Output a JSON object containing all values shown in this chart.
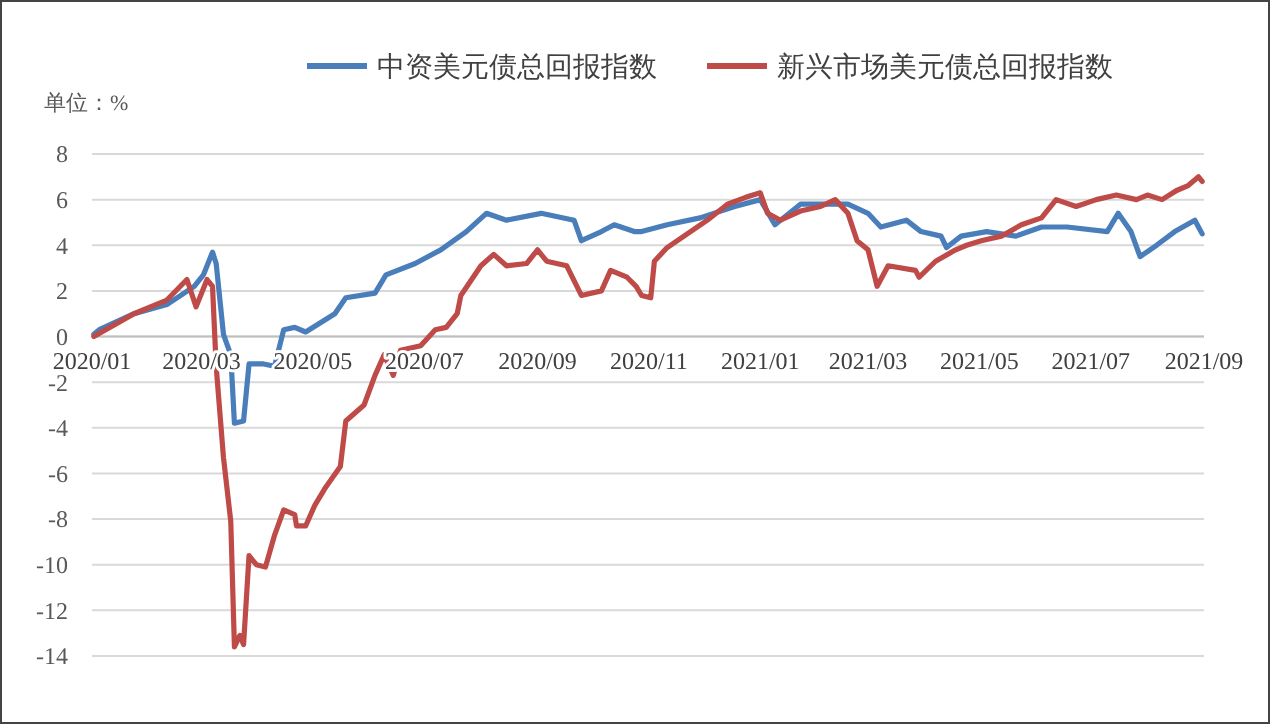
{
  "chart_data": {
    "type": "line",
    "legend": "top",
    "grid": "y",
    "ylabel": "单位：%",
    "xlim": [
      "2020-01-01",
      "2021-09-01"
    ],
    "xticks": [
      {
        "value": "2020-01-01",
        "label": "2020/01"
      },
      {
        "value": "2020-03-01",
        "label": "2020/03"
      },
      {
        "value": "2020-05-01",
        "label": "2020/05"
      },
      {
        "value": "2020-07-01",
        "label": "2020/07"
      },
      {
        "value": "2020-09-01",
        "label": "2020/09"
      },
      {
        "value": "2020-11-01",
        "label": "2020/11"
      },
      {
        "value": "2021-01-01",
        "label": "2021/01"
      },
      {
        "value": "2021-03-01",
        "label": "2021/03"
      },
      {
        "value": "2021-05-01",
        "label": "2021/05"
      },
      {
        "value": "2021-07-01",
        "label": "2021/07"
      },
      {
        "value": "2021-09-01",
        "label": "2021/09"
      }
    ],
    "ylim": [
      -14,
      8
    ],
    "yticks": [
      -14,
      -12,
      -10,
      -8,
      -6,
      -4,
      -2,
      0,
      2,
      4,
      6,
      8
    ],
    "series": [
      {
        "name": "中资美元债总回报指数",
        "color": "#4a7ebb",
        "x": [
          "2020-01-02",
          "2020-01-05",
          "2020-01-24",
          "2020-02-11",
          "2020-02-26",
          "2020-03-02",
          "2020-03-07",
          "2020-03-09",
          "2020-03-13",
          "2020-03-17",
          "2020-03-19",
          "2020-03-24",
          "2020-03-27",
          "2020-04-04",
          "2020-04-10",
          "2020-04-15",
          "2020-04-21",
          "2020-04-27",
          "2020-05-13",
          "2020-05-19",
          "2020-06-04",
          "2020-06-10",
          "2020-06-26",
          "2020-07-10",
          "2020-07-24",
          "2020-08-04",
          "2020-08-15",
          "2020-09-03",
          "2020-09-21",
          "2020-09-25",
          "2020-10-06",
          "2020-10-13",
          "2020-10-24",
          "2020-10-28",
          "2020-11-11",
          "2020-11-29",
          "2020-12-18",
          "2021-01-01",
          "2021-01-09",
          "2021-01-23",
          "2021-02-07",
          "2021-02-18",
          "2021-03-01",
          "2021-03-08",
          "2021-03-22",
          "2021-03-30",
          "2021-04-10",
          "2021-04-13",
          "2021-04-21",
          "2021-05-05",
          "2021-05-21",
          "2021-06-04",
          "2021-06-18",
          "2021-07-10",
          "2021-07-16",
          "2021-07-23",
          "2021-07-28",
          "2021-08-06",
          "2021-08-16",
          "2021-08-27",
          "2021-08-31"
        ],
        "values": [
          0.1,
          0.3,
          1.0,
          1.4,
          2.2,
          2.7,
          3.7,
          3.2,
          0.1,
          -0.8,
          -3.8,
          -3.7,
          -1.2,
          -1.2,
          -1.3,
          0.3,
          0.4,
          0.2,
          1.0,
          1.7,
          1.9,
          2.7,
          3.2,
          3.8,
          4.6,
          5.4,
          5.1,
          5.4,
          5.1,
          4.2,
          4.6,
          4.9,
          4.6,
          4.6,
          4.9,
          5.2,
          5.7,
          6.0,
          4.9,
          5.8,
          5.8,
          5.8,
          5.4,
          4.8,
          5.1,
          4.6,
          4.4,
          3.9,
          4.4,
          4.6,
          4.4,
          4.8,
          4.8,
          4.6,
          5.4,
          4.6,
          3.5,
          4.0,
          4.6,
          5.1,
          4.5
        ]
      },
      {
        "name": "新兴市场美元债总回报指数",
        "color": "#be4b48",
        "x": [
          "2020-01-02",
          "2020-01-24",
          "2020-02-11",
          "2020-02-22",
          "2020-02-27",
          "2020-03-04",
          "2020-03-07",
          "2020-03-09",
          "2020-03-13",
          "2020-03-17",
          "2020-03-19",
          "2020-03-22",
          "2020-03-24",
          "2020-03-27",
          "2020-03-31",
          "2020-04-05",
          "2020-04-10",
          "2020-04-15",
          "2020-04-21",
          "2020-04-22",
          "2020-04-27",
          "2020-05-02",
          "2020-05-08",
          "2020-05-16",
          "2020-05-19",
          "2020-05-29",
          "2020-06-04",
          "2020-06-09",
          "2020-06-14",
          "2020-06-18",
          "2020-06-29",
          "2020-07-07",
          "2020-07-13",
          "2020-07-19",
          "2020-07-21",
          "2020-08-01",
          "2020-08-08",
          "2020-08-15",
          "2020-08-26",
          "2020-09-01",
          "2020-09-06",
          "2020-09-17",
          "2020-09-25",
          "2020-10-06",
          "2020-10-11",
          "2020-10-20",
          "2020-10-25",
          "2020-10-28",
          "2020-11-02",
          "2020-11-04",
          "2020-11-11",
          "2020-11-22",
          "2020-12-03",
          "2020-12-14",
          "2020-12-24",
          "2021-01-01",
          "2021-01-05",
          "2021-01-12",
          "2021-01-23",
          "2021-02-03",
          "2021-02-11",
          "2021-02-18",
          "2021-02-23",
          "2021-03-01",
          "2021-03-06",
          "2021-03-12",
          "2021-03-27",
          "2021-03-29",
          "2021-04-07",
          "2021-04-18",
          "2021-04-24",
          "2021-05-02",
          "2021-05-13",
          "2021-05-24",
          "2021-06-04",
          "2021-06-12",
          "2021-06-23",
          "2021-07-04",
          "2021-07-15",
          "2021-07-26",
          "2021-08-01",
          "2021-08-09",
          "2021-08-17",
          "2021-08-23",
          "2021-08-29",
          "2021-08-31"
        ],
        "values": [
          0.0,
          1.0,
          1.6,
          2.5,
          1.3,
          2.5,
          2.2,
          -1.3,
          -5.3,
          -8.1,
          -13.6,
          -13.1,
          -13.5,
          -9.6,
          -10.0,
          -10.1,
          -8.7,
          -7.6,
          -7.8,
          -8.3,
          -8.3,
          -7.4,
          -6.6,
          -5.7,
          -3.7,
          -3.0,
          -1.7,
          -0.8,
          -1.7,
          -0.6,
          -0.4,
          0.3,
          0.4,
          1.0,
          1.8,
          3.1,
          3.6,
          3.1,
          3.2,
          3.8,
          3.3,
          3.1,
          1.8,
          2.0,
          2.9,
          2.6,
          2.2,
          1.8,
          1.7,
          3.3,
          3.9,
          4.5,
          5.1,
          5.8,
          6.1,
          6.3,
          5.4,
          5.1,
          5.5,
          5.7,
          6.0,
          5.4,
          4.2,
          3.8,
          2.2,
          3.1,
          2.9,
          2.6,
          3.3,
          3.8,
          4.0,
          4.2,
          4.4,
          4.9,
          5.2,
          6.0,
          5.7,
          6.0,
          6.2,
          6.0,
          6.2,
          6.0,
          6.4,
          6.6,
          7.0,
          6.8
        ]
      }
    ]
  }
}
